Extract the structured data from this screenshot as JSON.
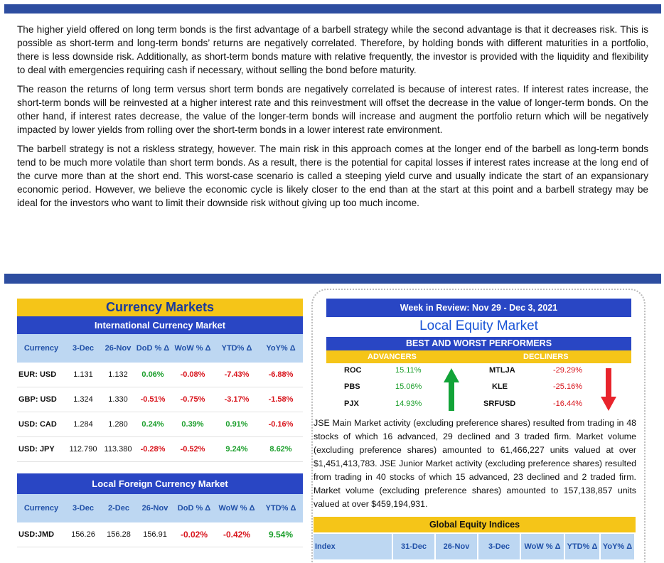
{
  "article": {
    "paragraphs": [
      "The higher yield offered on long term bonds is the first advantage of a barbell strategy while the second advantage is that it decreases risk. This is possible as short-term and long-term bonds’ returns are negatively correlated. Therefore, by holding bonds with different maturities in a portfolio, there is less downside risk.  Additionally, as short-term bonds mature with relative frequently, the investor is provided with the liquidity and flexibility to deal with emergencies requiring cash if necessary, without selling the bond before maturity.",
      "The reason the returns of long term versus short term bonds are negatively correlated is because of interest rates. If interest rates increase, the short-term bonds will be reinvested at a higher interest rate and this reinvestment will offset the decrease in the value of longer-term bonds. On the other hand, if interest rates decrease, the value of the longer-term bonds will increase and augment the portfolio return which will be negatively impacted by lower yields from rolling over the short-term bonds in a lower interest rate environment.",
      "The barbell strategy is not a riskless strategy, however.  The main risk in this approach comes at the longer end of the barbell as long-term bonds tend to be much more volatile than short term bonds. As a result, there is the potential for capital losses if interest rates increase at the long end of the curve more than at the short end. This worst-case scenario is called a steeping yield curve and usually indicate the start of an expansionary economic period.  However, we believe the economic cycle is likely closer to the end than at the start at this point and a barbell strategy may be ideal for the investors who want to limit their downside risk without giving up too much income."
    ]
  },
  "currency": {
    "title": "Currency Markets",
    "intl_title": "International Currency Market",
    "intl_headers": [
      "Currency",
      "3-Dec",
      "26-Nov",
      "DoD % Δ",
      "WoW % Δ",
      "YTD% Δ",
      "YoY% Δ"
    ],
    "intl_rows": [
      [
        "EUR: USD",
        "1.131",
        "1.132",
        "0.06%",
        "-0.08%",
        "-7.43%",
        "-6.88%"
      ],
      [
        "GBP: USD",
        "1.324",
        "1.330",
        "-0.51%",
        "-0.75%",
        "-3.17%",
        "-1.58%"
      ],
      [
        "USD: CAD",
        "1.284",
        "1.280",
        "0.24%",
        "0.39%",
        "0.91%",
        "-0.16%"
      ],
      [
        "USD: JPY",
        "112.790",
        "113.380",
        "-0.28%",
        "-0.52%",
        "9.24%",
        "8.62%"
      ]
    ],
    "local_title": "Local Foreign Currency Market",
    "local_headers": [
      "Currency",
      "3-Dec",
      "2-Dec",
      "26-Nov",
      "DoD % Δ",
      "WoW % Δ",
      "YTD% Δ"
    ],
    "local_rows": [
      [
        "USD:JMD",
        "156.26",
        "156.28",
        "156.91",
        "-0.02%",
        "-0.42%",
        "9.54%"
      ]
    ]
  },
  "equity": {
    "week_title": "Week in Review:  Nov 29 - Dec 3, 2021",
    "market_title": "Local Equity Market",
    "bw_title": "BEST AND WORST PERFORMERS",
    "advancers_label": "ADVANCERS",
    "decliners_label": "DECLINERS",
    "advancers": [
      [
        "ROC",
        "15.11%"
      ],
      [
        "PBS",
        "15.06%"
      ],
      [
        "PJX",
        "14.93%"
      ]
    ],
    "decliners": [
      [
        "MTLJA",
        "-29.29%"
      ],
      [
        "KLE",
        "-25.16%"
      ],
      [
        "SRFUSD",
        "-16.44%"
      ]
    ],
    "summary": "JSE Main Market activity (excluding preference shares) resulted from trading in 48 stocks of which 16 advanced, 29 declined and 3 traded firm. Market volume (excluding preference shares) amounted to 61,466,227 units valued at over $1,451,413,783. JSE Junior Market activity (excluding preference shares) resulted from trading in 40 stocks of which 15 advanced, 23 declined and 2 traded firm. Market volume (excluding preference shares) amounted to 157,138,857 units valued at over $459,194,931.",
    "indices_title": "Global Equity Indices",
    "indices_headers": [
      "Index",
      "31-Dec",
      "26-Nov",
      "3-Dec",
      "WoW % Δ",
      "YTD% Δ",
      "YoY% Δ"
    ]
  },
  "colors": {
    "brand_blue": "#2d4da0",
    "header_blue": "#2946c4",
    "accent_yellow": "#f5c518",
    "positive": "#1a9e2a",
    "negative": "#d8141c"
  }
}
